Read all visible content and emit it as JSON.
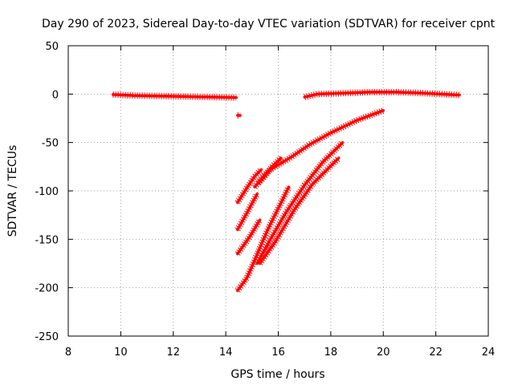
{
  "chart_data": {
    "type": "scatter",
    "title": "Day 290 of 2023, Sidereal Day-to-day VTEC variation (SDTVAR) for receiver cpnt",
    "xlabel": "GPS time / hours",
    "ylabel": "SDTVAR / TECUs",
    "xlim": [
      8,
      24
    ],
    "ylim": [
      -250,
      50
    ],
    "xticks": [
      "8",
      "10",
      "12",
      "14",
      "16",
      "18",
      "20",
      "22",
      "24"
    ],
    "yticks": [
      "50",
      "0",
      "-50",
      "-100",
      "-150",
      "-200",
      "-250"
    ],
    "grid": true,
    "color": "#ff0000",
    "series": [
      {
        "name": "arc-morning",
        "x": [
          9.7,
          10.5,
          11.5,
          12.5,
          13.5,
          14.4
        ],
        "y": [
          -0.5,
          -1.5,
          -2,
          -2.5,
          -3,
          -3.5
        ]
      },
      {
        "name": "arc-blip",
        "x": [
          14.45,
          14.55
        ],
        "y": [
          -22,
          -22
        ]
      },
      {
        "name": "arc-evening",
        "x": [
          17.0,
          17.5,
          18.5,
          19.5,
          20.5,
          21.5,
          22.9
        ],
        "y": [
          -3,
          0,
          1,
          2,
          2,
          1,
          -1
        ]
      },
      {
        "name": "arc-1",
        "x": [
          14.45,
          14.8,
          15.1,
          15.35
        ],
        "y": [
          -112,
          -97,
          -85,
          -78
        ]
      },
      {
        "name": "arc-2",
        "x": [
          15.25,
          15.7,
          16.5,
          17.2,
          18.0,
          19.0,
          20.0
        ],
        "y": [
          -92,
          -78,
          -65,
          -52,
          -40,
          -27,
          -17
        ]
      },
      {
        "name": "arc-3",
        "x": [
          15.1,
          15.5,
          15.8,
          16.1
        ],
        "y": [
          -96,
          -83,
          -74,
          -66
        ]
      },
      {
        "name": "arc-4",
        "x": [
          14.45,
          14.8,
          15.2
        ],
        "y": [
          -140,
          -123,
          -103
        ]
      },
      {
        "name": "arc-5",
        "x": [
          14.45,
          14.9,
          15.3
        ],
        "y": [
          -165,
          -148,
          -130
        ]
      },
      {
        "name": "arc-6",
        "x": [
          14.45,
          14.8,
          15.0,
          15.6,
          16.0,
          16.4
        ],
        "y": [
          -203,
          -190,
          -178,
          -140,
          -118,
          -96
        ]
      },
      {
        "name": "arc-7",
        "x": [
          15.2,
          15.7,
          16.3,
          17.0,
          17.7,
          18.45
        ],
        "y": [
          -175,
          -150,
          -122,
          -94,
          -70,
          -50
        ]
      },
      {
        "name": "arc-8",
        "x": [
          15.3,
          15.9,
          16.6,
          17.3,
          18.3
        ],
        "y": [
          -175,
          -152,
          -120,
          -93,
          -66
        ]
      }
    ]
  }
}
